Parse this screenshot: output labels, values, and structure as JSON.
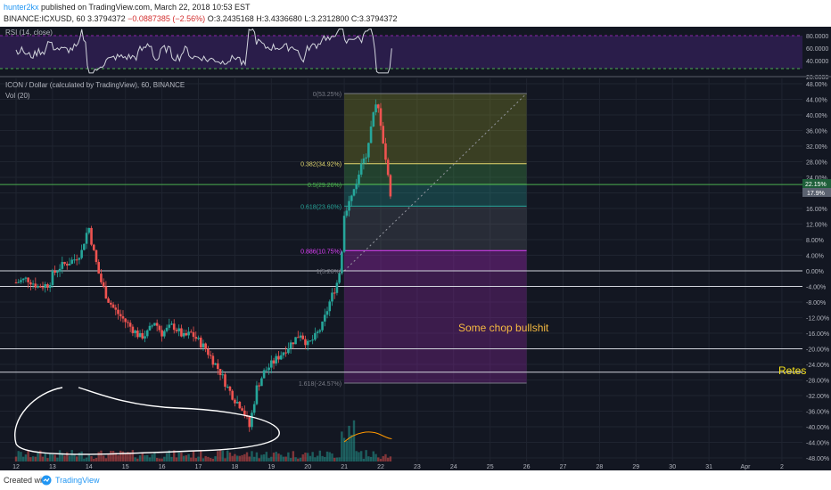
{
  "header": {
    "user": "hunter2kx",
    "published": "published on TradingView.com, March 22, 2018 10:53 EST",
    "symbol": "BINANCE:ICXUSD, 60",
    "last": "3.3794372",
    "change": "−0.0887385 (−2.56%)",
    "open": "O:3.2435168",
    "high": "H:3.4336680",
    "low": "L:3.2312800",
    "close": "C:3.3794372"
  },
  "rsi_pane": {
    "title": "RSI (14, close)",
    "axis_labels": [
      "80.0000",
      "60.0000",
      "40.0000",
      "20.0000"
    ]
  },
  "main_pane": {
    "title": "ICON / Dollar (calculated by TradingView), 60, BINANCE",
    "vol_label": "Vol (20)",
    "price_badges": [
      "22.15%",
      "17.9%"
    ]
  },
  "annotations": {
    "text1": "Some chop bullshit",
    "text2": "Retes",
    "colors": {
      "annotation1": "#f5b942",
      "annotation2": "#f5e11c"
    }
  },
  "fib": {
    "levels": [
      {
        "label": "0(53.25%)",
        "pct": 45.5,
        "color": "#787b86"
      },
      {
        "label": "0.382(34.92%)",
        "pct": 27.5,
        "color": "#e4d96f"
      },
      {
        "label": "0.5(29.26%)",
        "pct": 22.2,
        "color": "#4caf50"
      },
      {
        "label": "0.618(23.60%)",
        "pct": 16.6,
        "color": "#26a69a"
      },
      {
        "label": "0.886(10.75%)",
        "pct": 5.2,
        "color": "#e040fb"
      },
      {
        "label": "1(5.26%)",
        "pct": 0.0,
        "color": "#787b86"
      },
      {
        "label": "1.618(-24.57%)",
        "pct": -28.8,
        "color": "#787b86"
      }
    ]
  },
  "footer": {
    "created": "Created with",
    "brand": "TradingView"
  },
  "chart_data": {
    "type": "candlestick",
    "x_axis_labels": [
      "12",
      "13",
      "14",
      "15",
      "16",
      "17",
      "18",
      "19",
      "20",
      "21",
      "22",
      "23",
      "24",
      "25",
      "26",
      "27",
      "28",
      "29",
      "30",
      "31",
      "Apr",
      "2"
    ],
    "y_axis_labels": [
      "48.00%",
      "44.00%",
      "40.00%",
      "36.00%",
      "32.00%",
      "28.00%",
      "24.00%",
      "20.00%",
      "16.00%",
      "12.00%",
      "8.00%",
      "4.00%",
      "0.00%",
      "-4.00%",
      "-8.00%",
      "-12.00%",
      "-16.00%",
      "-20.00%",
      "-24.00%",
      "-28.00%",
      "-32.00%",
      "-36.00%",
      "-40.00%",
      "-44.00%",
      "-48.00%"
    ],
    "y_range_percent": [
      -48,
      48
    ],
    "horizontal_levels_percent": [
      22.15,
      0.0,
      -4.0,
      -20.0,
      -26.0
    ],
    "price_path_percent": [
      [
        12.0,
        -3.0
      ],
      [
        12.3,
        -2.0
      ],
      [
        12.6,
        -4.0
      ],
      [
        12.9,
        -3.5
      ],
      [
        13.0,
        -1.0
      ],
      [
        13.2,
        1.0
      ],
      [
        13.4,
        2.0
      ],
      [
        13.6,
        3.0
      ],
      [
        13.8,
        5.0
      ],
      [
        13.9,
        9.0
      ],
      [
        14.0,
        11.0
      ],
      [
        14.1,
        6.0
      ],
      [
        14.3,
        -2.0
      ],
      [
        14.5,
        -7.0
      ],
      [
        14.7,
        -10.0
      ],
      [
        15.0,
        -13.0
      ],
      [
        15.2,
        -15.0
      ],
      [
        15.4,
        -17.0
      ],
      [
        15.6,
        -16.0
      ],
      [
        15.8,
        -13.0
      ],
      [
        16.0,
        -16.0
      ],
      [
        16.3,
        -14.0
      ],
      [
        16.6,
        -17.0
      ],
      [
        16.8,
        -16.0
      ],
      [
        17.0,
        -18.0
      ],
      [
        17.2,
        -20.0
      ],
      [
        17.4,
        -23.0
      ],
      [
        17.6,
        -26.0
      ],
      [
        17.8,
        -30.0
      ],
      [
        18.0,
        -33.0
      ],
      [
        18.2,
        -35.0
      ],
      [
        18.4,
        -40.0
      ],
      [
        18.6,
        -30.0
      ],
      [
        18.8,
        -26.0
      ],
      [
        19.0,
        -24.0
      ],
      [
        19.2,
        -22.0
      ],
      [
        19.4,
        -20.0
      ],
      [
        19.6,
        -18.0
      ],
      [
        19.8,
        -16.0
      ],
      [
        20.0,
        -19.0
      ],
      [
        20.2,
        -17.0
      ],
      [
        20.4,
        -14.0
      ],
      [
        20.6,
        -8.0
      ],
      [
        20.8,
        -3.0
      ],
      [
        20.9,
        1.0
      ],
      [
        21.0,
        15.0
      ],
      [
        21.2,
        19.0
      ],
      [
        21.4,
        25.0
      ],
      [
        21.6,
        30.0
      ],
      [
        21.8,
        40.0
      ],
      [
        21.9,
        43.0
      ],
      [
        22.0,
        38.0
      ],
      [
        22.2,
        24.0
      ],
      [
        22.3,
        17.9
      ]
    ]
  }
}
